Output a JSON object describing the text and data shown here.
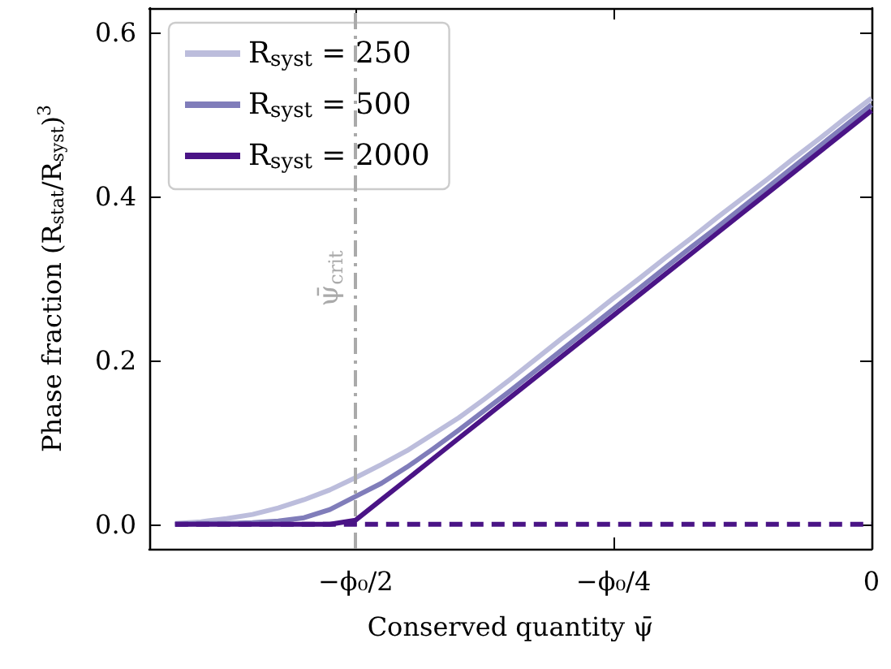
{
  "chart_data": {
    "type": "line",
    "xlabel": "Conserved quantity ψ̄",
    "ylabel": "Phase fraction (R$_{stat}$/R$_{syst}$)$^{3}$",
    "categories": [
      null,
      null,
      null,
      null,
      null,
      null,
      null,
      null,
      "−ϕ₀/2",
      null,
      null,
      null,
      null,
      null,
      null,
      null,
      null,
      null,
      "−ϕ₀/4",
      null,
      null,
      null,
      null,
      null,
      null,
      null,
      null,
      null,
      "0"
    ],
    "ylim": [
      -0.03,
      0.63
    ],
    "yticks": [
      {
        "value": 0,
        "label": "0.0"
      },
      {
        "value": 0.2,
        "label": "0.2"
      },
      {
        "value": 0.4,
        "label": "0.4"
      },
      {
        "value": 0.6,
        "label": "0.6"
      }
    ],
    "grid": false,
    "legend": "top left",
    "line_style": "solid",
    "marker": "none",
    "ref_lines": [
      {
        "axis": "x",
        "value": "−ϕ₀/2",
        "label": "ψ̄$_{crit}$",
        "color": "#aaaaaa",
        "line_style": "dashdot"
      }
    ],
    "series": [
      {
        "name": "R$_{syst}$ = 250",
        "color": "#bcbddc",
        "values": [
          null,
          0.001,
          0.003,
          0.007,
          0.012,
          0.02,
          0.03,
          0.042,
          0.057,
          0.073,
          0.09,
          0.11,
          0.13,
          0.153,
          0.177,
          0.202,
          0.227,
          0.251,
          0.276,
          0.3,
          0.325,
          0.349,
          0.374,
          0.398,
          0.422,
          0.447,
          0.471,
          0.496,
          0.52
        ]
      },
      {
        "name": "R$_{syst}$ = 500",
        "color": "#807dba",
        "values": [
          null,
          0,
          0.001,
          0.001,
          0.002,
          0.004,
          0.008,
          0.018,
          0.034,
          0.05,
          0.07,
          0.092,
          0.115,
          0.139,
          0.163,
          0.188,
          0.213,
          0.238,
          0.263,
          0.288,
          0.313,
          0.338,
          0.362,
          0.387,
          0.412,
          0.437,
          0.462,
          0.487,
          0.512
        ]
      },
      {
        "name": "R$_{syst}$ = 2000",
        "color": "#4a1486",
        "values": [
          null,
          0,
          0,
          0,
          0,
          0,
          0,
          0,
          0.005,
          0.03,
          0.055,
          0.08,
          0.105,
          0.13,
          0.155,
          0.18,
          0.205,
          0.23,
          0.255,
          0.28,
          0.305,
          0.33,
          0.355,
          0.38,
          0.405,
          0.43,
          0.455,
          0.48,
          0.505
        ]
      },
      {
        "color": "#4a1486",
        "line_style": "dashed",
        "values": [
          null,
          0,
          0,
          0,
          0,
          0,
          0,
          0,
          0,
          0,
          0,
          0,
          0,
          0,
          0,
          0,
          0,
          0,
          0,
          0,
          0,
          0,
          0,
          0,
          0,
          0,
          0,
          0,
          0
        ]
      }
    ]
  }
}
